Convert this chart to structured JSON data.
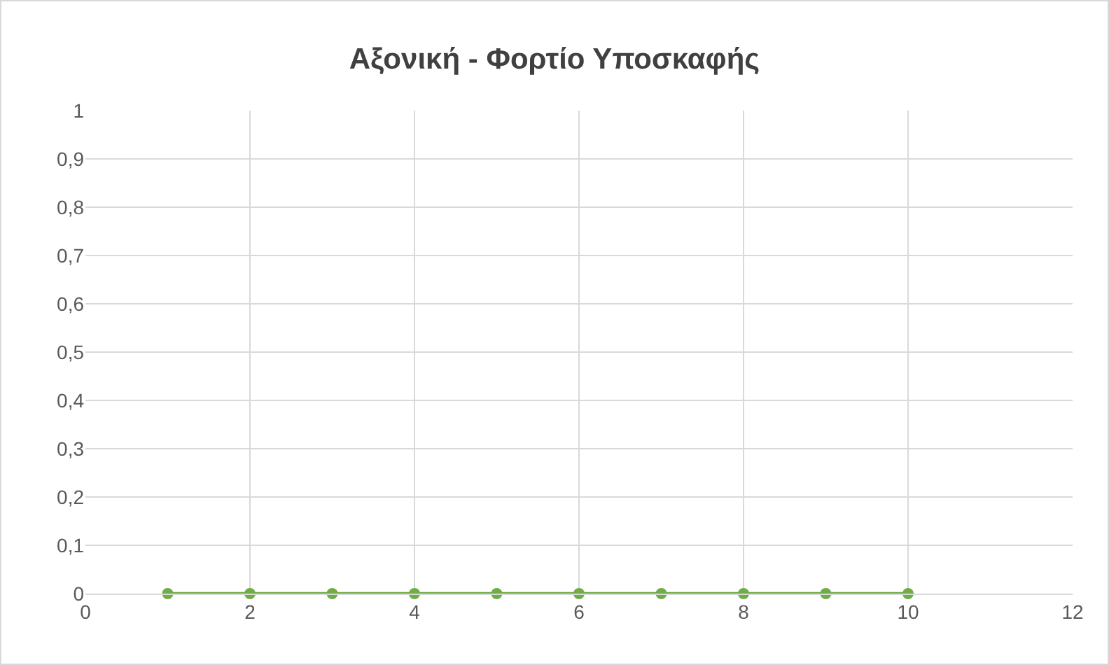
{
  "chart_data": {
    "type": "line",
    "title": "Αξονική - Φορτίο Υποσκαφής",
    "x": [
      1,
      2,
      3,
      4,
      5,
      6,
      7,
      8,
      9,
      10
    ],
    "series": [
      {
        "color": "#70ad47",
        "values": [
          0,
          0,
          0,
          0,
          0,
          0,
          0,
          0,
          0,
          0
        ]
      }
    ],
    "xlim": [
      0,
      12
    ],
    "xticks": [
      0,
      2,
      4,
      6,
      8,
      10,
      12
    ],
    "ylim": [
      0,
      1
    ],
    "yticks": [
      0,
      {
        "value": 0.1,
        "label": "0,1"
      },
      {
        "value": 0.2,
        "label": "0,2"
      },
      {
        "value": 0.3,
        "label": "0,3"
      },
      {
        "value": 0.4,
        "label": "0,4"
      },
      {
        "value": 0.5,
        "label": "0,5"
      },
      {
        "value": 0.6,
        "label": "0,6"
      },
      {
        "value": 0.7,
        "label": "0,7"
      },
      {
        "value": 0.8,
        "label": "0,8"
      },
      {
        "value": 0.9,
        "label": "0,9"
      },
      1
    ],
    "grid": true,
    "marker": "circle",
    "line_style": "solid"
  }
}
